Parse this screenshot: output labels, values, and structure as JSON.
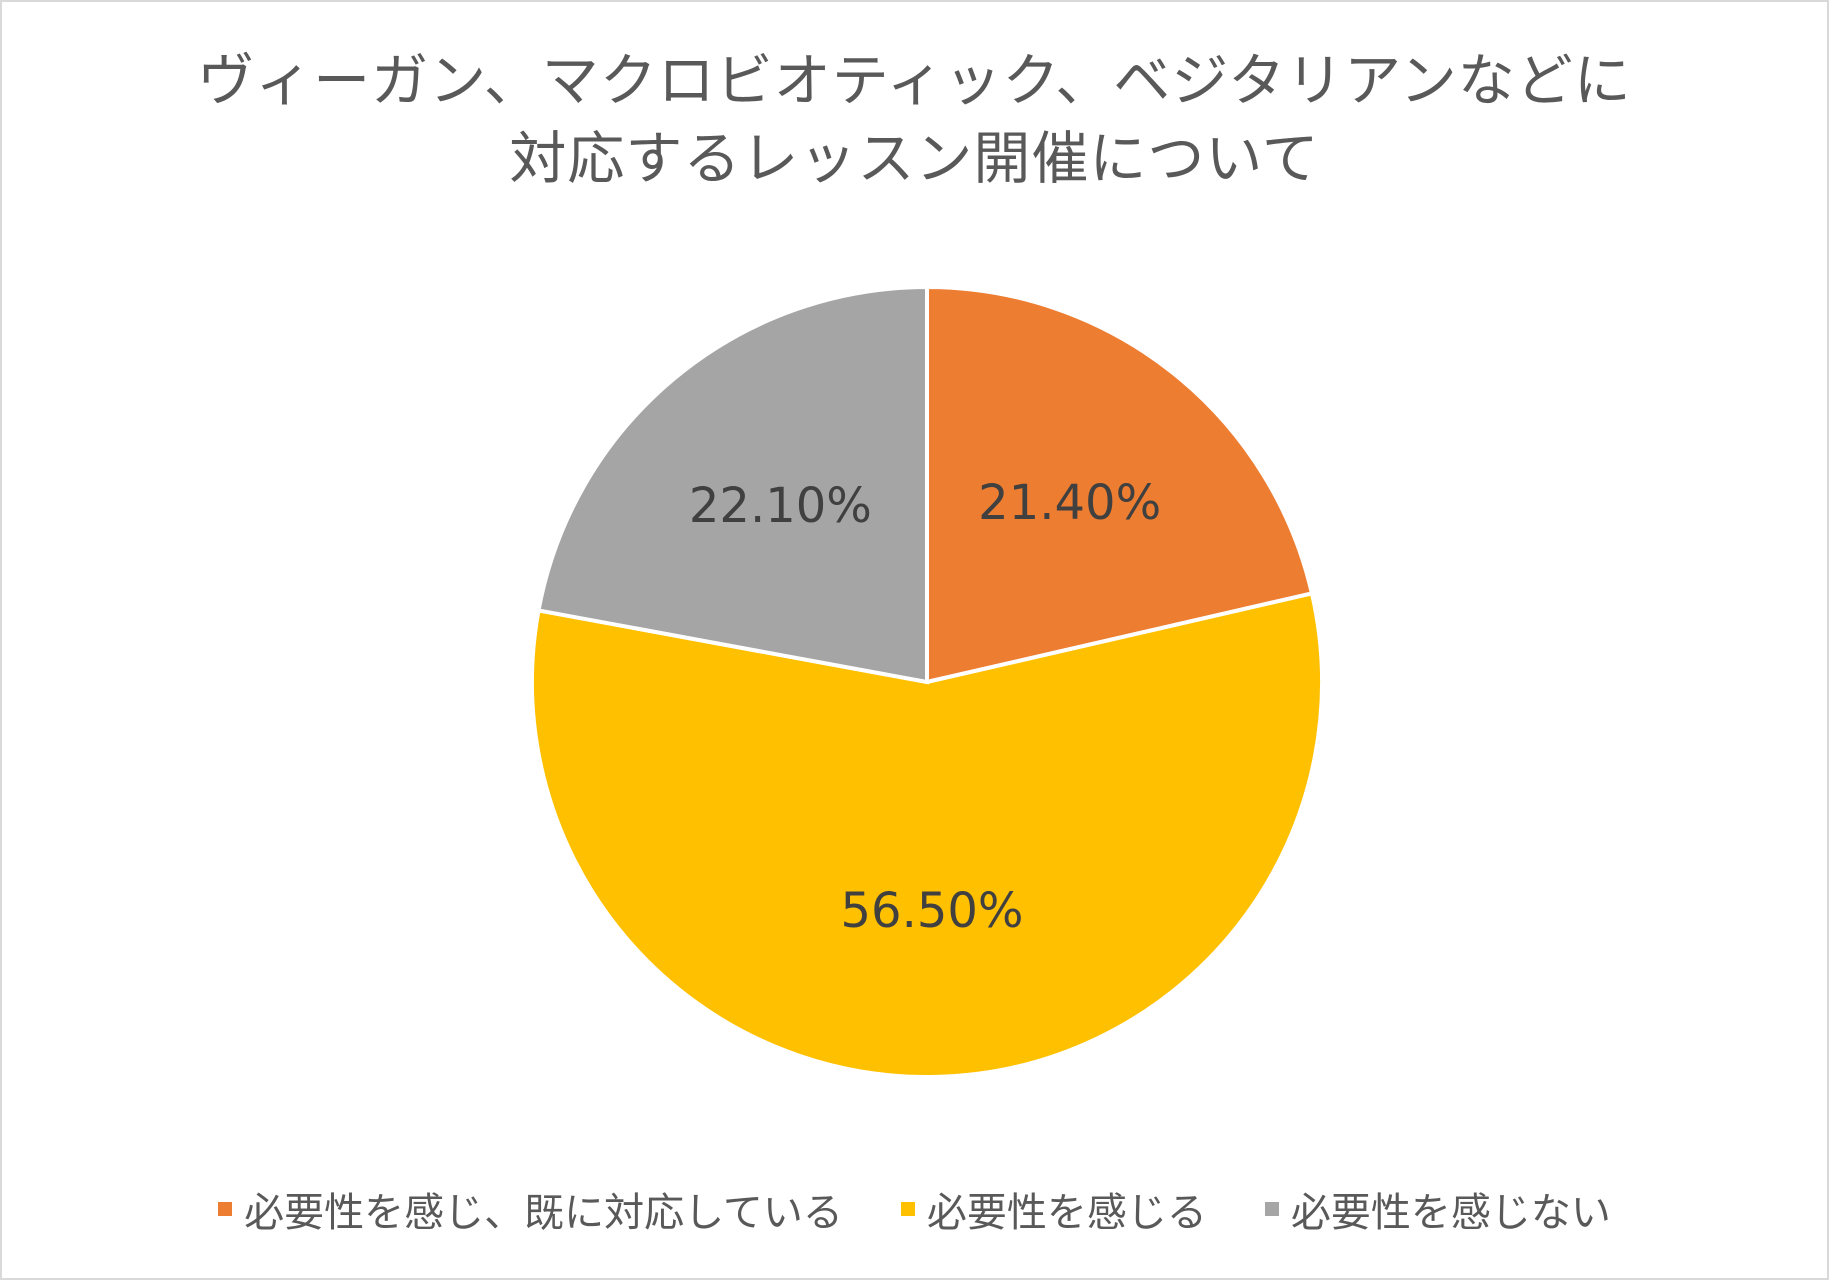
{
  "chart_data": {
    "type": "pie",
    "title_lines": [
      "ヴィーガン、マクロビオティック、ベジタリアンなどに",
      "対応するレッスン開催について"
    ],
    "categories": [
      "必要性を感じ、既に対応している",
      "必要性を感じる",
      "必要性を感じない"
    ],
    "values": [
      21.4,
      56.5,
      22.1
    ],
    "data_labels": [
      "21.40%",
      "56.50%",
      "22.10%"
    ],
    "colors": [
      "#ED7D31",
      "#FFC000",
      "#A5A5A5"
    ],
    "legend_position": "bottom",
    "start_angle": "12 o'clock, clockwise"
  }
}
